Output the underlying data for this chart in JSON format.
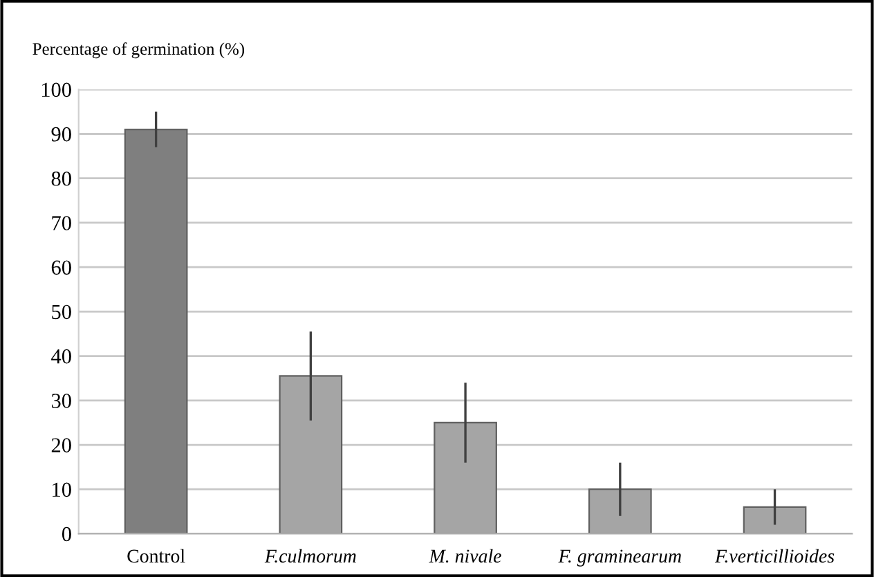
{
  "chart_data": {
    "type": "bar",
    "ylabel": "Percentage of germination (%)",
    "categories": [
      "Control",
      "F.culmorum",
      "M. nivale",
      "F. graminearum",
      "F.verticillioides"
    ],
    "values": [
      91,
      35.5,
      25,
      10,
      6
    ],
    "errors": [
      4,
      10,
      9,
      6,
      4
    ],
    "colors": [
      "#7f7f7f",
      "#a5a5a5",
      "#a5a5a5",
      "#a5a5a5",
      "#a5a5a5"
    ],
    "ylim": [
      0,
      100
    ],
    "yticks": [
      0,
      10,
      20,
      30,
      40,
      50,
      60,
      70,
      80,
      90,
      100
    ],
    "grid": "y"
  }
}
